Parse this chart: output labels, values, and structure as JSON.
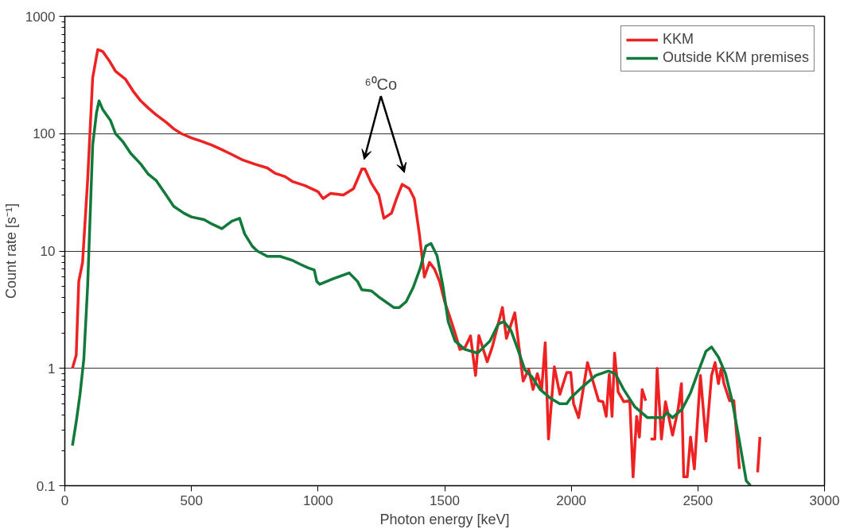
{
  "chart_data": {
    "type": "line",
    "xlabel": "Photon energy [keV]",
    "ylabel": "Count rate [s⁻¹]",
    "xlim": [
      0,
      3000
    ],
    "xticks": [
      0,
      500,
      1000,
      1500,
      2000,
      2500,
      3000
    ],
    "ylim": [
      0.1,
      1000
    ],
    "yticks": [
      0.1,
      1,
      10,
      100,
      1000
    ],
    "log": "y",
    "grid": "y",
    "legend": "top right",
    "marker": "none",
    "line_style": "solid",
    "annotations": [
      "⁶⁰Co"
    ],
    "series": [
      {
        "name": "KKM",
        "color": "#ee2222",
        "x": [
          30,
          45,
          55,
          70,
          90,
          110,
          130,
          150,
          175,
          200,
          240,
          270,
          300,
          330,
          360,
          400,
          430,
          460,
          500,
          540,
          580,
          620,
          650,
          700,
          750,
          800,
          830,
          870,
          900,
          950,
          1000,
          1020,
          1050,
          1100,
          1140,
          1173,
          1185,
          1210,
          1240,
          1260,
          1290,
          1310,
          1332,
          1360,
          1380,
          1400,
          1420,
          1440,
          1460,
          1480,
          1500,
          1523,
          1541,
          1560,
          1580,
          1602,
          1622,
          1635,
          1668,
          1688,
          1728,
          1744,
          1777,
          1810,
          1832,
          1849,
          1866,
          1883,
          1897,
          1910,
          1933,
          1955,
          1982,
          1998,
          2009,
          2029,
          2064,
          2108,
          2125,
          2138,
          2150,
          2161,
          2171,
          2185,
          2207,
          2231,
          2244,
          2258,
          2269,
          2280,
          2294,
          2303,
          2313,
          2330,
          2339,
          2356,
          2372,
          2400,
          2422,
          2435,
          2444,
          2458,
          2471,
          2486,
          2510,
          2532,
          2554,
          2568,
          2581,
          2592,
          2603,
          2625,
          2642,
          2664,
          2700,
          2736,
          2745
        ],
        "values": [
          1.0,
          1.3,
          5.5,
          8,
          40,
          300,
          520,
          500,
          420,
          340,
          290,
          230,
          190,
          165,
          145,
          125,
          110,
          100,
          92,
          86,
          80,
          73,
          68,
          60,
          55,
          51,
          46,
          43,
          39,
          36,
          32,
          28,
          31,
          30,
          34,
          50,
          50,
          38,
          30,
          19,
          21,
          28,
          37,
          34,
          28,
          14,
          6.0,
          8,
          7,
          5.5,
          3.7,
          2.64,
          2.0,
          1.45,
          1.5,
          1.89,
          0.87,
          1.9,
          1.14,
          1.52,
          3.3,
          1.8,
          2.97,
          0.78,
          0.98,
          0.66,
          0.9,
          0.66,
          1.65,
          0.25,
          1.03,
          0.6,
          0.92,
          0.92,
          0.5,
          0.38,
          1.12,
          0.53,
          0.52,
          0.39,
          0.89,
          0.39,
          1.35,
          0.63,
          0.52,
          0.53,
          0.119,
          0.39,
          0.26,
          0.66,
          0.53,
          null,
          0.25,
          0.25,
          1.0,
          0.25,
          0.52,
          0.27,
          0.45,
          0.74,
          0.119,
          0.119,
          0.26,
          0.139,
          0.87,
          0.24,
          0.87,
          1.12,
          0.74,
          1.0,
          0.74,
          0.53,
          0.53,
          0.139,
          null,
          0.13,
          0.26
        ]
      },
      {
        "name": "Outside KKM premises",
        "color": "#117a3a",
        "x": [
          30,
          45,
          60,
          75,
          90,
          100,
          110,
          125,
          135,
          150,
          180,
          200,
          230,
          260,
          300,
          330,
          360,
          400,
          430,
          470,
          500,
          550,
          580,
          620,
          660,
          690,
          710,
          740,
          760,
          800,
          850,
          900,
          930,
          960,
          985,
          995,
          1007,
          1060,
          1123,
          1156,
          1173,
          1211,
          1244,
          1299,
          1321,
          1348,
          1376,
          1404,
          1426,
          1446,
          1470,
          1492,
          1514,
          1541,
          1580,
          1630,
          1679,
          1712,
          1734,
          1762,
          1789,
          1817,
          1844,
          1877,
          1916,
          1954,
          1982,
          1998,
          2042,
          2097,
          2147,
          2174,
          2207,
          2251,
          2301,
          2361,
          2378,
          2400,
          2438,
          2471,
          2504,
          2532,
          2554,
          2581,
          2609,
          2636,
          2664,
          2691,
          2708
        ],
        "values": [
          0.22,
          0.35,
          0.6,
          1.2,
          5,
          20,
          80,
          150,
          190,
          160,
          130,
          100,
          85,
          68,
          55,
          45,
          40,
          30,
          24,
          21,
          19.5,
          18.5,
          17,
          15.5,
          18,
          19,
          14,
          11,
          10,
          9,
          9,
          8.3,
          7.7,
          7.2,
          6.9,
          5.5,
          5.2,
          5.8,
          6.5,
          5.5,
          4.67,
          4.57,
          4.0,
          3.3,
          3.3,
          3.7,
          4.9,
          7.2,
          11,
          11.6,
          9.1,
          5.2,
          2.5,
          1.71,
          1.45,
          1.35,
          1.71,
          2.39,
          2.5,
          2.1,
          1.45,
          0.97,
          0.85,
          0.66,
          0.56,
          0.5,
          0.5,
          0.56,
          0.69,
          0.87,
          0.95,
          0.9,
          0.66,
          0.47,
          0.38,
          0.38,
          0.42,
          0.38,
          0.45,
          0.62,
          0.97,
          1.4,
          1.52,
          1.25,
          0.9,
          0.52,
          0.24,
          0.11,
          0.1
        ]
      }
    ]
  }
}
